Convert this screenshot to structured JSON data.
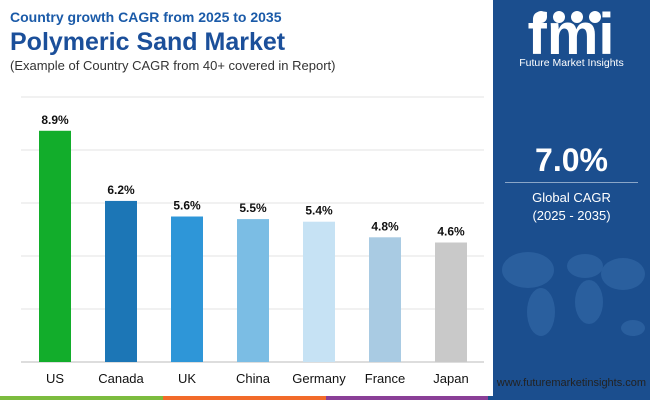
{
  "header": {
    "top_line": "Country growth CAGR from 2025 to 2035",
    "title": "Polymeric Sand Market",
    "note": "(Example of Country CAGR from 40+ covered in Report)"
  },
  "panel": {
    "logo_text": "fmi",
    "logo_caption": "Future Market Insights",
    "global_value": "7.0%",
    "global_label": "Global CAGR",
    "global_period": "(2025 - 2035)",
    "background_color": "#1b4e8e"
  },
  "footer": {
    "website": "www.futuremarketinsights.com",
    "strip_colors": [
      "#7cbc3e",
      "#f26b2a",
      "#8a3f97",
      "#1b4e8e"
    ]
  },
  "chart_data": {
    "type": "bar",
    "categories": [
      "US",
      "Canada",
      "UK",
      "China",
      "Germany",
      "France",
      "Japan"
    ],
    "values": [
      8.9,
      6.2,
      5.6,
      5.5,
      5.4,
      4.8,
      4.6
    ],
    "data_labels": [
      "8.9%",
      "6.2%",
      "5.6%",
      "5.5%",
      "5.4%",
      "4.8%",
      "4.6%"
    ],
    "colors": [
      "#12ad2b",
      "#1c76b6",
      "#2e96d8",
      "#7bbde4",
      "#c6e2f4",
      "#a9cbe3",
      "#c9c9c9"
    ],
    "ylim": [
      0,
      10.2
    ],
    "grid": true,
    "xlabel": "",
    "ylabel": ""
  }
}
